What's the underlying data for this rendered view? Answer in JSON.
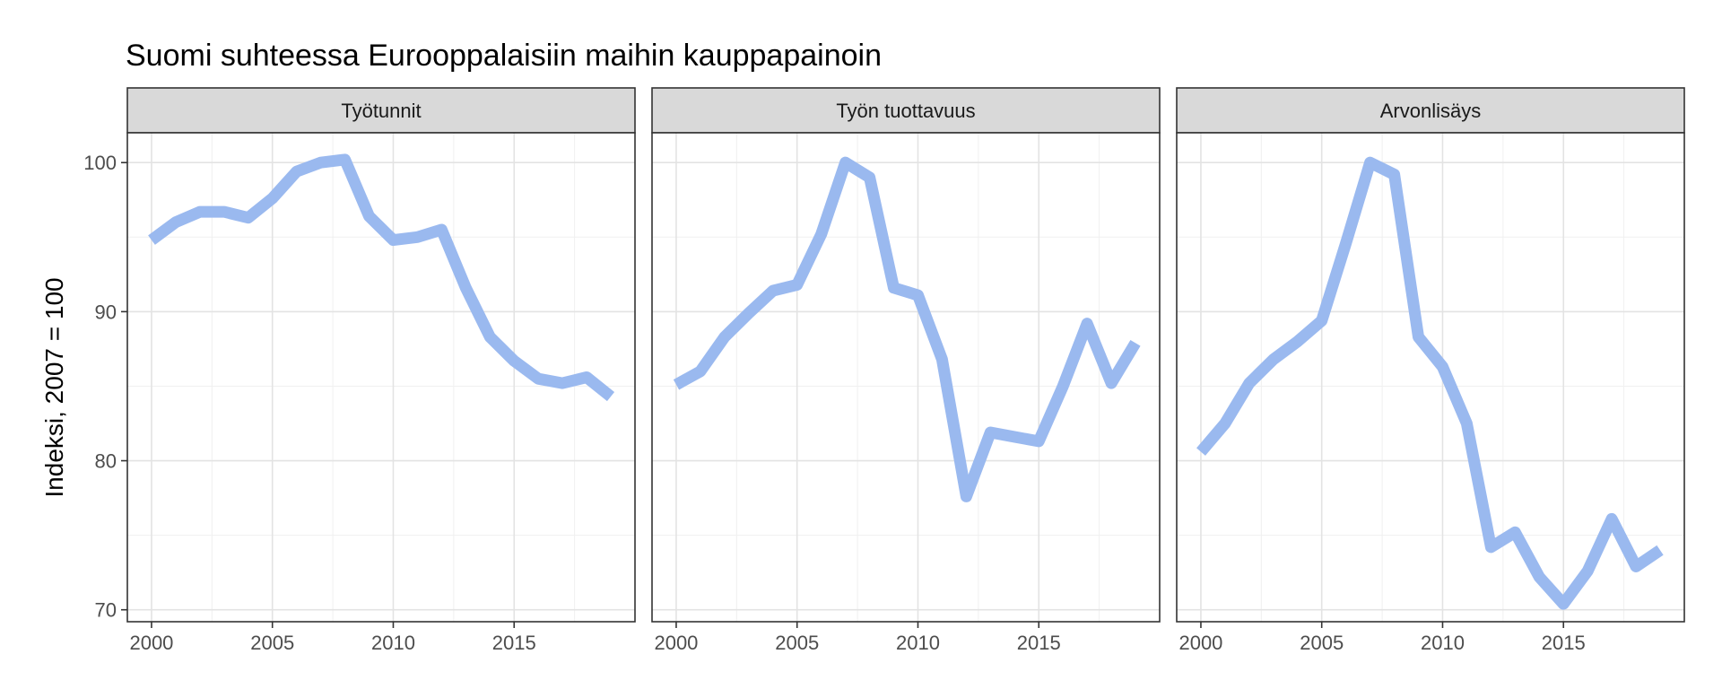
{
  "chart_data": {
    "type": "line",
    "title": "Suomi suhteessa Eurooppalaisiin maihin kauppapainoin",
    "ylabel": "Indeksi, 2007 = 100",
    "xlabel": "",
    "xlim": [
      1999,
      2020
    ],
    "ylim": [
      69.2,
      102.0
    ],
    "xticks": [
      2000,
      2005,
      2010,
      2015
    ],
    "yticks": [
      70,
      80,
      90,
      100
    ],
    "grid": true,
    "legend": "none",
    "line_color": "#9ab9ef",
    "facets": [
      {
        "name": "Työtunnit",
        "x": [
          2000,
          2001,
          2002,
          2003,
          2004,
          2005,
          2006,
          2007,
          2008,
          2009,
          2010,
          2011,
          2012,
          2013,
          2014,
          2015,
          2016,
          2017,
          2018,
          2019
        ],
        "values": [
          94.8,
          96.0,
          96.7,
          96.7,
          96.3,
          97.6,
          99.4,
          100.0,
          100.2,
          96.4,
          94.8,
          95.0,
          95.5,
          91.6,
          88.3,
          86.7,
          85.5,
          85.2,
          85.6,
          84.3
        ]
      },
      {
        "name": "Työn tuottavuus",
        "x": [
          2000,
          2001,
          2002,
          2003,
          2004,
          2005,
          2006,
          2007,
          2008,
          2009,
          2010,
          2011,
          2012,
          2013,
          2014,
          2015,
          2016,
          2017,
          2018,
          2019
        ],
        "values": [
          85.1,
          86.0,
          88.3,
          89.9,
          91.4,
          91.8,
          95.2,
          100.0,
          99.0,
          91.6,
          91.1,
          86.8,
          77.6,
          81.9,
          81.6,
          81.3,
          85.0,
          89.2,
          85.2,
          87.9
        ]
      },
      {
        "name": "Arvonlisäys",
        "x": [
          2000,
          2001,
          2002,
          2003,
          2004,
          2005,
          2006,
          2007,
          2008,
          2009,
          2010,
          2011,
          2012,
          2013,
          2014,
          2015,
          2016,
          2017,
          2018,
          2019
        ],
        "values": [
          80.6,
          82.5,
          85.2,
          86.8,
          88.0,
          89.4,
          94.6,
          100.0,
          99.2,
          88.3,
          86.3,
          82.5,
          74.2,
          75.2,
          72.2,
          70.4,
          72.6,
          76.1,
          72.9,
          74.0
        ]
      }
    ]
  }
}
